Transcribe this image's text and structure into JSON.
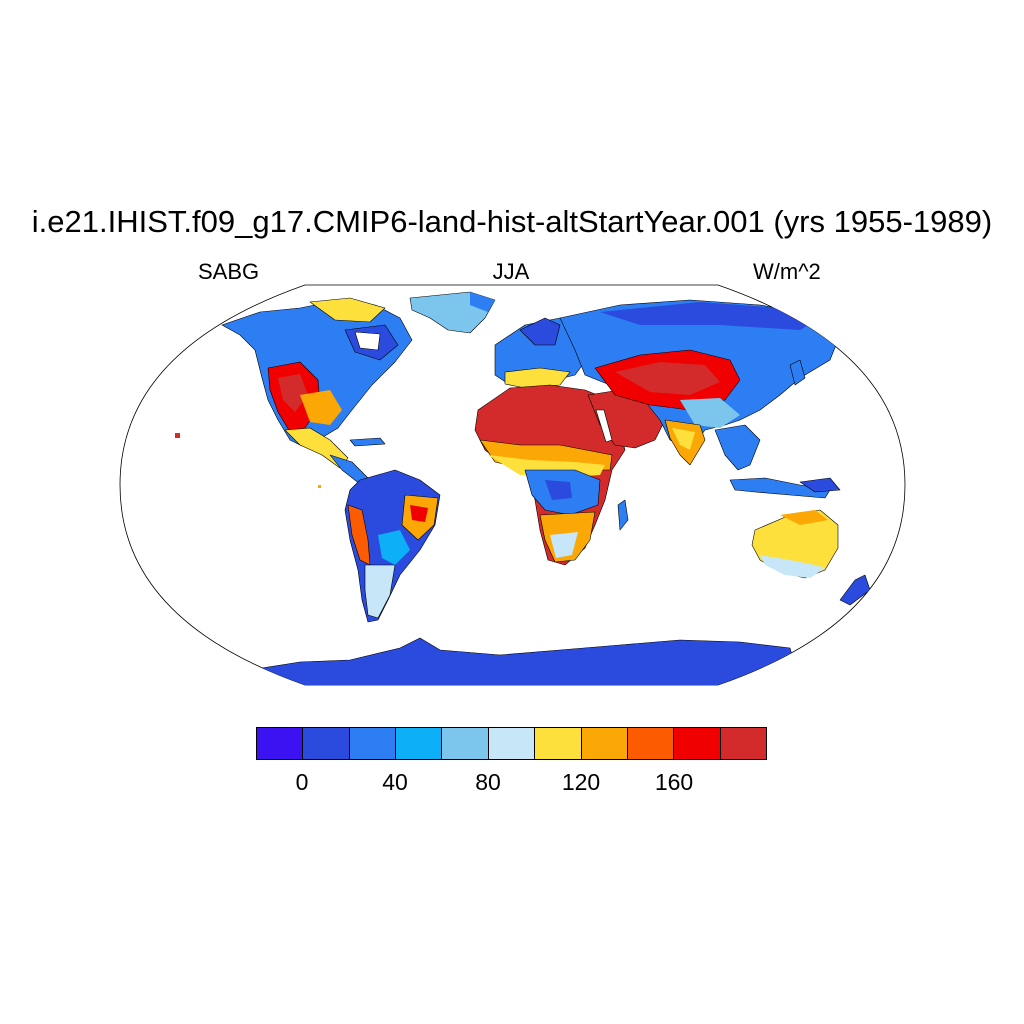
{
  "map": {
    "title": "i.e21.IHIST.f09_g17.CMIP6-land-hist-altStartYear.001 (yrs 1955-1989)",
    "variable": "SABG",
    "season": "JJA",
    "units": "W/m^2",
    "projection": "Robinson",
    "continents": [
      "North America",
      "South America",
      "Europe",
      "Africa",
      "Asia",
      "Australia",
      "Antarctica",
      "Greenland"
    ]
  },
  "colorbar": {
    "colors": [
      "#3d12f2",
      "#2a4bde",
      "#2d7ef2",
      "#0db0f7",
      "#7cc6ee",
      "#c7e6f7",
      "#fde03b",
      "#fba705",
      "#fd5b02",
      "#f00000",
      "#d32b2b"
    ],
    "tick_labels": [
      "0",
      "40",
      "80",
      "120",
      "160"
    ],
    "tick_values": [
      0,
      40,
      80,
      120,
      160
    ]
  }
}
